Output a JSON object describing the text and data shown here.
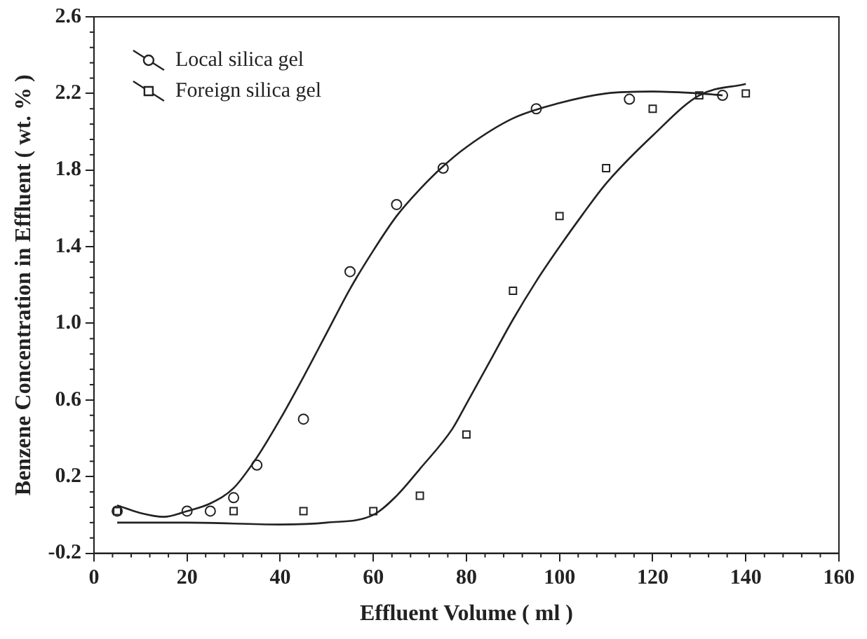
{
  "chart_data": {
    "type": "scatter",
    "xlabel": "Effluent Volume ( ml )",
    "ylabel": "Benzene Concentration in Effluent ( wt. % )",
    "xlim": [
      0,
      160
    ],
    "xticks": [
      0,
      20,
      40,
      60,
      80,
      100,
      120,
      140,
      160
    ],
    "ylim": [
      -0.2,
      2.6
    ],
    "yticks": [
      -0.2,
      0.2,
      0.6,
      {
        "value": 1,
        "label": "1.0"
      },
      1.4,
      1.8,
      2.2,
      2.6
    ],
    "grid": false,
    "legend": "top left",
    "series": [
      {
        "name": "Local silica gel",
        "marker": "circle",
        "color": "#222222",
        "x": [
          5,
          20,
          25,
          30,
          35,
          45,
          55,
          65,
          75,
          95,
          115,
          135
        ],
        "values": [
          0.02,
          0.02,
          0.02,
          0.09,
          0.26,
          0.5,
          1.27,
          1.62,
          1.81,
          2.12,
          2.17,
          2.19
        ]
      },
      {
        "name": "Foreign silica gel",
        "marker": "square",
        "color": "#222222",
        "x": [
          5,
          30,
          45,
          60,
          70,
          80,
          90,
          100,
          110,
          120,
          130,
          140
        ],
        "values": [
          0.02,
          0.02,
          0.02,
          0.02,
          0.1,
          0.42,
          1.17,
          1.56,
          1.81,
          2.12,
          2.19,
          2.2
        ]
      },
      {
        "type": "line",
        "marker": "none",
        "line_style": "solid",
        "color": "#222222",
        "x": [
          5,
          10,
          15,
          20,
          25,
          30,
          35,
          40,
          45,
          50,
          55,
          60,
          65,
          70,
          75,
          80,
          90,
          100,
          110,
          120,
          130,
          135
        ],
        "values": [
          0.05,
          0.01,
          -0.01,
          0.02,
          0.06,
          0.14,
          0.3,
          0.5,
          0.72,
          0.95,
          1.18,
          1.38,
          1.56,
          1.7,
          1.82,
          1.92,
          2.07,
          2.15,
          2.2,
          2.21,
          2.2,
          2.19
        ]
      },
      {
        "type": "line",
        "marker": "none",
        "line_style": "solid",
        "color": "#222222",
        "x": [
          5,
          20,
          40,
          50,
          60,
          65,
          70,
          77,
          80,
          85,
          90,
          95,
          100,
          105,
          110,
          120,
          130,
          140
        ],
        "values": [
          -0.04,
          -0.04,
          -0.05,
          -0.04,
          0.0,
          0.1,
          0.24,
          0.45,
          0.58,
          0.8,
          1.02,
          1.22,
          1.4,
          1.57,
          1.73,
          1.98,
          2.19,
          2.25
        ]
      }
    ]
  }
}
